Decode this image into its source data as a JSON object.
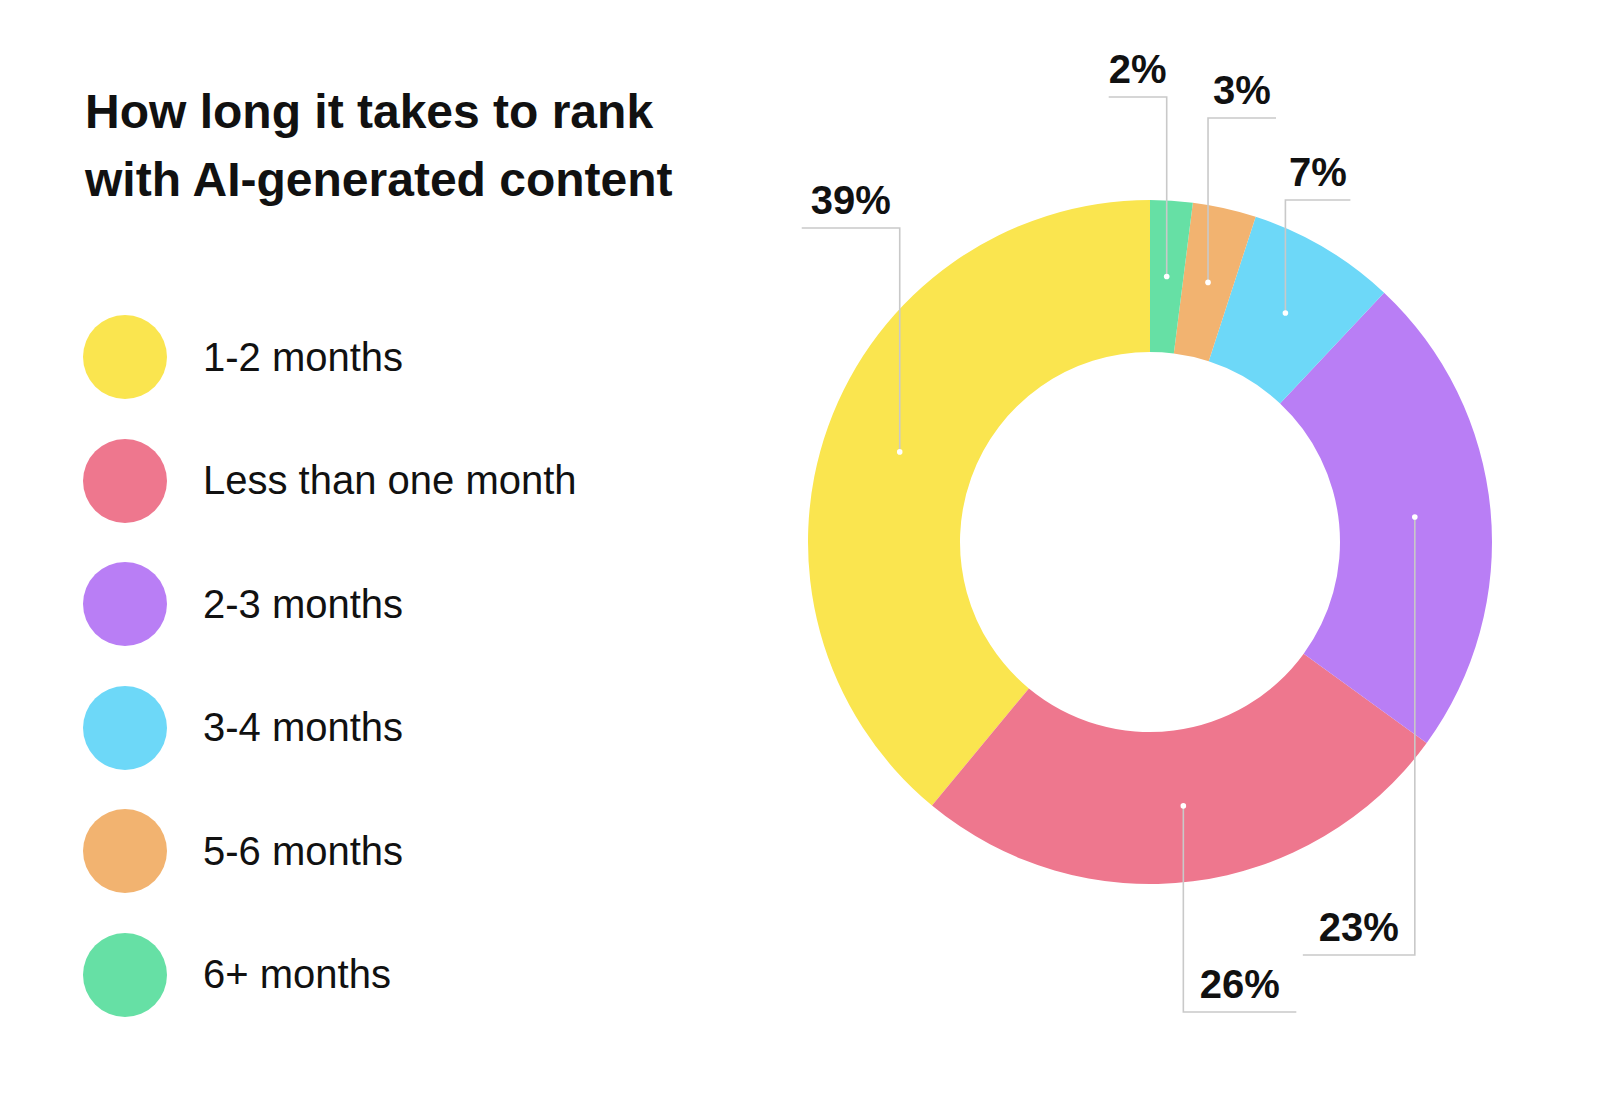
{
  "chart_data": {
    "type": "donut",
    "title": "How long it takes to rank with AI-generated content",
    "categories": [
      "1-2 months",
      "Less than one month",
      "2-3 months",
      "3-4 months",
      "5-6 months",
      "6+ months"
    ],
    "values": [
      39,
      26,
      23,
      7,
      3,
      2
    ],
    "value_labels": [
      "39%",
      "26%",
      "23%",
      "7%",
      "3%",
      "2%"
    ],
    "colors": [
      "#FAE54F",
      "#EE778E",
      "#B97EF5",
      "#6DD8F8",
      "#F2B370",
      "#66E0A5"
    ],
    "data_labels": true,
    "legend": "left"
  }
}
